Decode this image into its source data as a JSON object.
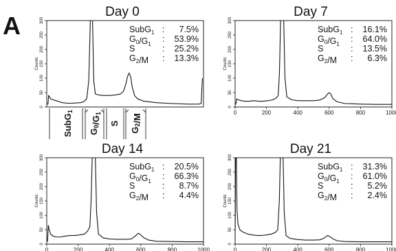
{
  "figure": {
    "label": "A"
  },
  "phase_labels": [
    "SubG1",
    "G0/G1",
    "S",
    "G2/M"
  ],
  "chart_data": [
    {
      "type": "line",
      "title": "Day 0",
      "ylabel": "Counts",
      "ylim": [
        0,
        300
      ],
      "yticks": [
        0,
        50,
        100,
        150,
        200,
        250,
        300
      ],
      "xlim": [
        0,
        1000
      ],
      "xticks": [],
      "stats": [
        {
          "label": "SubG1",
          "value": "7.5%"
        },
        {
          "label": "G0/G1",
          "value": "53.9%"
        },
        {
          "label": "S",
          "value": "25.2%"
        },
        {
          "label": "G2/M",
          "value": "13.3%"
        }
      ],
      "series": [
        {
          "points": [
            [
              0,
              10
            ],
            [
              8,
              10
            ],
            [
              12,
              40
            ],
            [
              18,
              35
            ],
            [
              25,
              28
            ],
            [
              40,
              25
            ],
            [
              60,
              22
            ],
            [
              80,
              18
            ],
            [
              100,
              15
            ],
            [
              130,
              13
            ],
            [
              160,
              13
            ],
            [
              190,
              14
            ],
            [
              215,
              15
            ],
            [
              235,
              18
            ],
            [
              255,
              28
            ],
            [
              268,
              90
            ],
            [
              278,
              300
            ],
            [
              286,
              300
            ],
            [
              292,
              300
            ],
            [
              300,
              90
            ],
            [
              310,
              45
            ],
            [
              330,
              42
            ],
            [
              360,
              40
            ],
            [
              400,
              40
            ],
            [
              440,
              42
            ],
            [
              470,
              45
            ],
            [
              490,
              55
            ],
            [
              505,
              80
            ],
            [
              515,
              105
            ],
            [
              525,
              118
            ],
            [
              535,
              105
            ],
            [
              545,
              70
            ],
            [
              560,
              40
            ],
            [
              580,
              28
            ],
            [
              620,
              20
            ],
            [
              700,
              15
            ],
            [
              800,
              12
            ],
            [
              900,
              10
            ],
            [
              970,
              10
            ],
            [
              985,
              12
            ],
            [
              993,
              100
            ]
          ]
        }
      ]
    },
    {
      "type": "line",
      "title": "Day 7",
      "ylabel": "Counts",
      "ylim": [
        0,
        300
      ],
      "yticks": [
        0,
        50,
        100,
        150,
        200,
        250,
        300
      ],
      "xlim": [
        0,
        1000
      ],
      "xticks": [
        0,
        200,
        400,
        600,
        800,
        1000
      ],
      "stats": [
        {
          "label": "SubG1",
          "value": "16.1%"
        },
        {
          "label": "G0/G1",
          "value": "64.0%"
        },
        {
          "label": "S",
          "value": "13.5%"
        },
        {
          "label": "G2/M",
          "value": "6.3%"
        }
      ],
      "series": [
        {
          "points": [
            [
              0,
              10
            ],
            [
              5,
              10
            ],
            [
              10,
              28
            ],
            [
              20,
              25
            ],
            [
              40,
              22
            ],
            [
              60,
              20
            ],
            [
              90,
              20
            ],
            [
              120,
              22
            ],
            [
              150,
              20
            ],
            [
              180,
              20
            ],
            [
              210,
              22
            ],
            [
              240,
              25
            ],
            [
              260,
              30
            ],
            [
              275,
              40
            ],
            [
              283,
              120
            ],
            [
              290,
              300
            ],
            [
              300,
              300
            ],
            [
              310,
              300
            ],
            [
              318,
              100
            ],
            [
              330,
              35
            ],
            [
              360,
              25
            ],
            [
              400,
              22
            ],
            [
              450,
              22
            ],
            [
              500,
              22
            ],
            [
              540,
              24
            ],
            [
              570,
              32
            ],
            [
              590,
              45
            ],
            [
              600,
              50
            ],
            [
              610,
              45
            ],
            [
              625,
              28
            ],
            [
              650,
              18
            ],
            [
              700,
              12
            ],
            [
              800,
              10
            ],
            [
              900,
              9
            ],
            [
              1000,
              9
            ]
          ]
        }
      ]
    },
    {
      "type": "line",
      "title": "Day 14",
      "ylabel": "Counts",
      "ylim": [
        0,
        300
      ],
      "yticks": [
        0,
        50,
        100,
        150,
        200,
        250,
        300
      ],
      "xlim": [
        0,
        1000
      ],
      "xticks": [
        0,
        200,
        400,
        600,
        800,
        1000
      ],
      "stats": [
        {
          "label": "SubG1",
          "value": "20.5%"
        },
        {
          "label": "G0/G1",
          "value": "66.3%"
        },
        {
          "label": "S",
          "value": "8.7%"
        },
        {
          "label": "G2/M",
          "value": "4.4%"
        }
      ],
      "series": [
        {
          "points": [
            [
              0,
              10
            ],
            [
              5,
              10
            ],
            [
              10,
              65
            ],
            [
              16,
              50
            ],
            [
              25,
              35
            ],
            [
              40,
              28
            ],
            [
              60,
              25
            ],
            [
              90,
              25
            ],
            [
              120,
              28
            ],
            [
              150,
              30
            ],
            [
              180,
              30
            ],
            [
              210,
              32
            ],
            [
              240,
              35
            ],
            [
              260,
              45
            ],
            [
              275,
              60
            ],
            [
              283,
              150
            ],
            [
              290,
              300
            ],
            [
              300,
              300
            ],
            [
              310,
              300
            ],
            [
              318,
              110
            ],
            [
              330,
              35
            ],
            [
              360,
              22
            ],
            [
              400,
              18
            ],
            [
              450,
              17
            ],
            [
              500,
              17
            ],
            [
              540,
              18
            ],
            [
              565,
              28
            ],
            [
              585,
              38
            ],
            [
              600,
              32
            ],
            [
              620,
              22
            ],
            [
              650,
              14
            ],
            [
              700,
              10
            ],
            [
              800,
              9
            ],
            [
              900,
              8
            ],
            [
              1000,
              8
            ]
          ]
        }
      ]
    },
    {
      "type": "line",
      "title": "Day 21",
      "ylabel": "Counts",
      "ylim": [
        0,
        300
      ],
      "yticks": [
        0,
        50,
        100,
        150,
        200,
        250,
        300
      ],
      "xlim": [
        0,
        1000
      ],
      "xticks": [
        0,
        200,
        400,
        600,
        800,
        1000
      ],
      "stats": [
        {
          "label": "SubG1",
          "value": "31.3%"
        },
        {
          "label": "G0/G1",
          "value": "61.0%"
        },
        {
          "label": "S",
          "value": "5.2%"
        },
        {
          "label": "G2/M",
          "value": "2.4%"
        }
      ],
      "series": [
        {
          "points": [
            [
              0,
              10
            ],
            [
              3,
              300
            ],
            [
              8,
              300
            ],
            [
              12,
              120
            ],
            [
              18,
              70
            ],
            [
              30,
              50
            ],
            [
              50,
              42
            ],
            [
              80,
              35
            ],
            [
              110,
              32
            ],
            [
              140,
              30
            ],
            [
              170,
              30
            ],
            [
              200,
              32
            ],
            [
              230,
              35
            ],
            [
              255,
              40
            ],
            [
              272,
              50
            ],
            [
              282,
              150
            ],
            [
              288,
              300
            ],
            [
              298,
              300
            ],
            [
              306,
              300
            ],
            [
              313,
              110
            ],
            [
              325,
              30
            ],
            [
              350,
              20
            ],
            [
              400,
              16
            ],
            [
              450,
              14
            ],
            [
              500,
              14
            ],
            [
              540,
              15
            ],
            [
              565,
              20
            ],
            [
              590,
              30
            ],
            [
              605,
              26
            ],
            [
              625,
              18
            ],
            [
              650,
              12
            ],
            [
              700,
              9
            ],
            [
              800,
              8
            ],
            [
              900,
              8
            ],
            [
              1000,
              8
            ]
          ]
        }
      ]
    }
  ]
}
